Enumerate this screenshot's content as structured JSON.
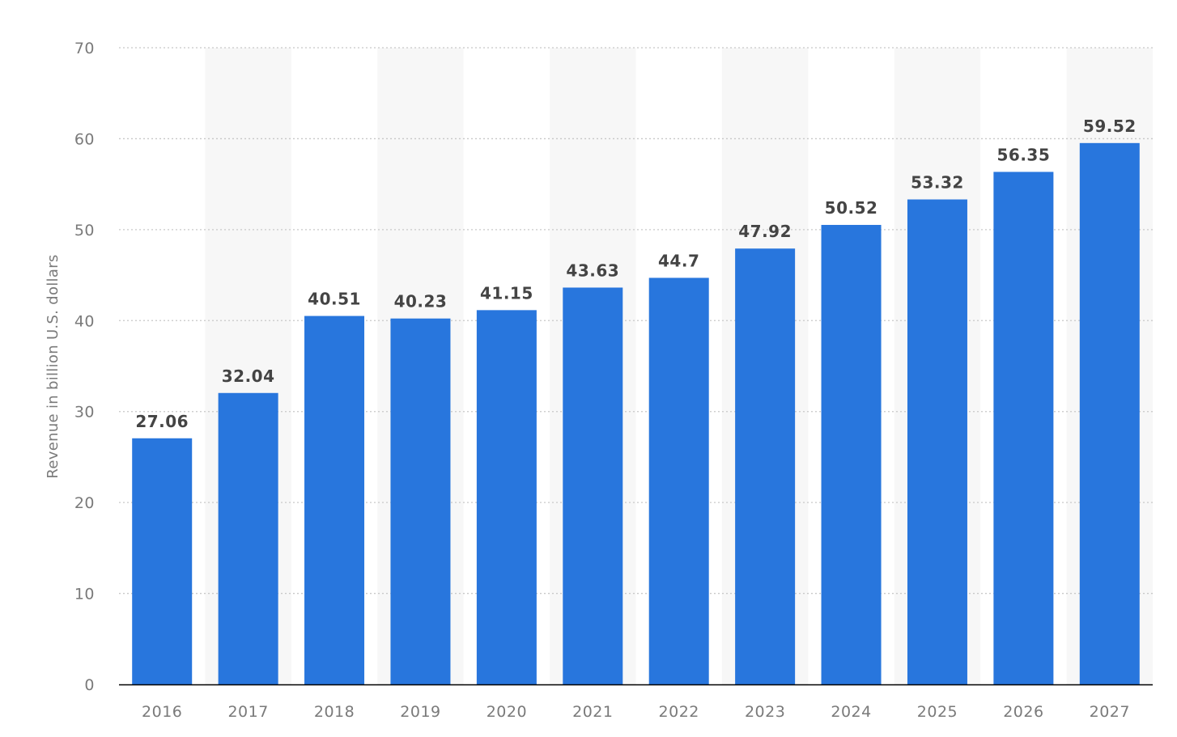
{
  "chart_data": {
    "type": "bar",
    "title": "",
    "xlabel": "",
    "ylabel": "Revenue in billion U.S. dollars",
    "ylim": [
      0,
      70
    ],
    "yticks": [
      0,
      10,
      20,
      30,
      40,
      50,
      60,
      70
    ],
    "categories": [
      "2016",
      "2017",
      "2018",
      "2019",
      "2020",
      "2021",
      "2022",
      "2023",
      "2024",
      "2025",
      "2026",
      "2027"
    ],
    "values": [
      27.06,
      32.04,
      40.51,
      40.23,
      41.15,
      43.63,
      44.7,
      47.92,
      50.52,
      53.32,
      56.35,
      59.52
    ],
    "value_labels": [
      "27.06",
      "32.04",
      "40.51",
      "40.23",
      "41.15",
      "43.63",
      "44.7",
      "47.92",
      "50.52",
      "53.32",
      "56.35",
      "59.52"
    ],
    "grid": true,
    "alternating_bands": true,
    "colors": {
      "bar": "#2876dd",
      "band": "#f7f7f7",
      "axis": "#000000"
    }
  }
}
